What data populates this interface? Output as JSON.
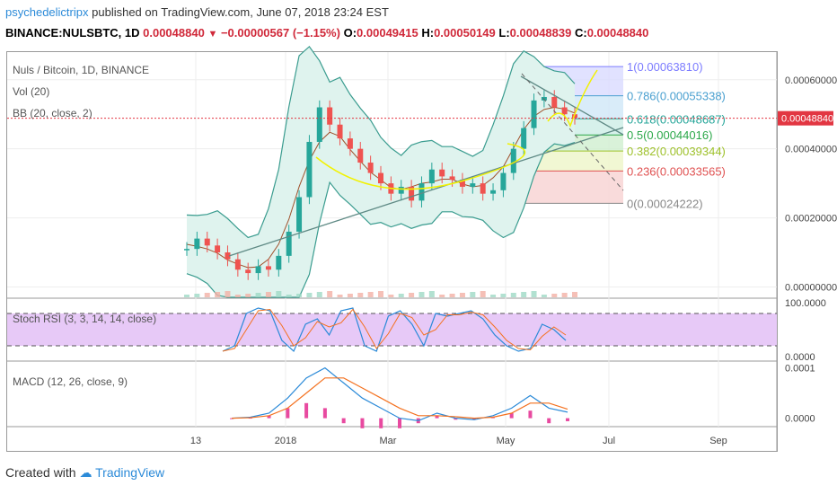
{
  "header": {
    "user": "psychedelictripx",
    "published": "published on TradingView.com, June 07, 2018 23:24 EST",
    "symbol": "BINANCE:NULSBTC, 1D",
    "last": "0.00048840",
    "change": "−0.00000567 (−1.15%)",
    "o_label": "O:",
    "o": "0.00049415",
    "h_label": "H:",
    "h": "0.00050149",
    "l_label": "L:",
    "l": "0.00048839",
    "c_label": "C:",
    "c": "0.00048840"
  },
  "main_legend": {
    "pair": "Nuls / Bitcoin, 1D, BINANCE",
    "vol": "Vol (20)",
    "bb": "BB (20, close, 2)"
  },
  "stoch_legend": "Stoch RSI (3, 3, 14, 14, close)",
  "macd_legend": "MACD (12, 26, close, 9)",
  "price_badge": "0.00048840",
  "footer": {
    "created": "Created with",
    "brand": "TradingView"
  },
  "colors": {
    "up": "#26a69a",
    "down": "#ef5350",
    "bb_fill": "#dff3ee",
    "bb_line": "#3a9c8f",
    "stoch_fill": "#e7c9f7",
    "macd_line": "#2b8ad8",
    "signal_line": "#f4711f",
    "hist": "#e84aa0",
    "badge": "#e23642",
    "accent": "#2b8ad8"
  },
  "chart_data": [
    {
      "type": "line",
      "title": "Nuls / Bitcoin, 1D, BINANCE",
      "xlabel": "",
      "ylabel": "",
      "x_ticks": [
        "13",
        "2018",
        "Mar",
        "May",
        "Jul",
        "Sep"
      ],
      "y_ticks": [
        "0.00060000",
        "0.00040000",
        "0.00020000",
        "0.00000000"
      ],
      "ylim": [
        -3e-05,
        0.00068
      ],
      "grid": true,
      "series": [
        {
          "name": "close",
          "values": [
            0.00011,
            0.00014,
            0.00012,
            0.0001,
            8e-05,
            5e-05,
            4e-05,
            6e-05,
            5e-05,
            9e-05,
            0.00016,
            0.00026,
            0.00042,
            0.00052,
            0.00047,
            0.00043,
            0.0004,
            0.00036,
            0.00033,
            0.0003,
            0.00027,
            0.00029,
            0.00025,
            0.0003,
            0.00034,
            0.00032,
            0.00031,
            0.00029,
            0.0003,
            0.00027,
            0.00028,
            0.00033,
            0.0004,
            0.00046,
            0.00054,
            0.00055,
            0.00052,
            0.0005,
            0.00049
          ]
        }
      ],
      "fibonacci": [
        {
          "label": "1(0.00063810)",
          "value": 0.0006381
        },
        {
          "label": "0.786(0.00055338)",
          "value": 0.00055338
        },
        {
          "label": "0.618(0.00048687)",
          "value": 0.00048687
        },
        {
          "label": "0.5(0.00044016)",
          "value": 0.00044016
        },
        {
          "label": "0.382(0.00039344)",
          "value": 0.00039344
        },
        {
          "label": "0.236(0.00033565)",
          "value": 0.00033565
        },
        {
          "label": "0(0.00024222)",
          "value": 0.00024222
        }
      ]
    },
    {
      "type": "line",
      "title": "Stoch RSI (3, 3, 14, 14, close)",
      "y_ticks": [
        "100.0000",
        "0.0000"
      ],
      "ylim": [
        0,
        100
      ],
      "band": [
        20,
        80
      ],
      "series": [
        {
          "name": "K",
          "values": [
            10,
            20,
            80,
            90,
            85,
            30,
            10,
            60,
            70,
            40,
            85,
            90,
            20,
            10,
            75,
            85,
            60,
            20,
            80,
            75,
            80,
            85,
            70,
            40,
            20,
            10,
            15,
            60,
            50,
            30
          ]
        }
      ]
    },
    {
      "type": "line",
      "title": "MACD (12, 26, close, 9)",
      "y_ticks": [
        "0.0001",
        "0.0000"
      ],
      "ylim": [
        -1.5e-05,
        0.00011
      ],
      "series": [
        {
          "name": "MACD",
          "values": [
            0.0,
            2e-06,
            1e-05,
            4e-05,
            8e-05,
            0.0001,
            7e-05,
            4e-05,
            2e-05,
            0.0,
            -5e-06,
            1e-05,
            0.0,
            -3e-06,
            5e-06,
            2e-05,
            4.5e-05,
            2e-05,
            1.2e-05
          ]
        },
        {
          "name": "Signal",
          "values": [
            0.0,
            1e-06,
            5e-06,
            2e-05,
            5e-05,
            8e-05,
            8e-05,
            6e-05,
            4e-05,
            2e-05,
            5e-06,
            5e-06,
            3e-06,
            0.0,
            2e-06,
            1e-05,
            3e-05,
            3e-05,
            1.8e-05
          ]
        }
      ]
    }
  ]
}
